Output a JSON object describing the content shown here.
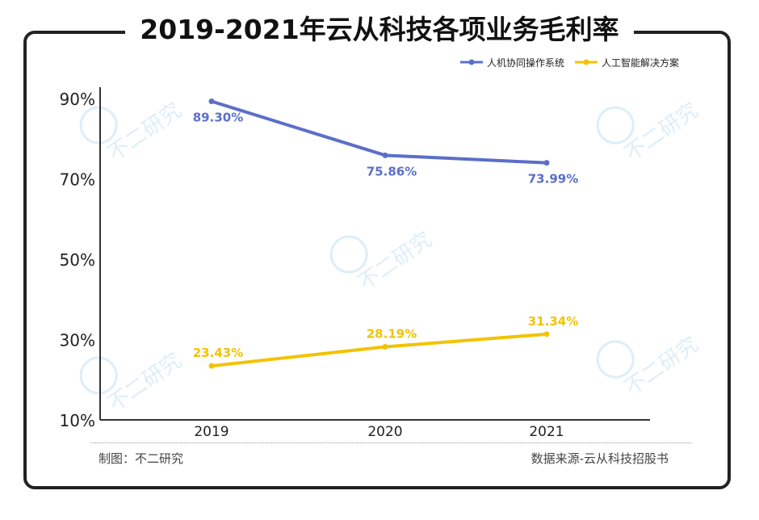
{
  "title": "2019-2021年云从科技各项业务毛利率",
  "footer": {
    "credit": "制图：不二研究",
    "source": "数据来源-云从科技招股书"
  },
  "watermark": "不二研究",
  "chart_data": {
    "type": "line",
    "categories": [
      "2019",
      "2020",
      "2021"
    ],
    "series": [
      {
        "name": "人机协同操作系统",
        "values": [
          89.3,
          75.86,
          73.99
        ],
        "labels": [
          "89.30%",
          "75.86%",
          "73.99%"
        ],
        "color": "#5b6fc8"
      },
      {
        "name": "人工智能解决方案",
        "values": [
          23.43,
          28.19,
          31.34
        ],
        "labels": [
          "23.43%",
          "28.19%",
          "31.34%"
        ],
        "color": "#f2c300"
      }
    ],
    "yticks": [
      "90%",
      "70%",
      "50%",
      "30%",
      "10%"
    ],
    "ytick_values": [
      90,
      70,
      50,
      30,
      10
    ],
    "ylim": [
      10,
      90
    ],
    "legend_position": "top-right",
    "grid": false
  }
}
